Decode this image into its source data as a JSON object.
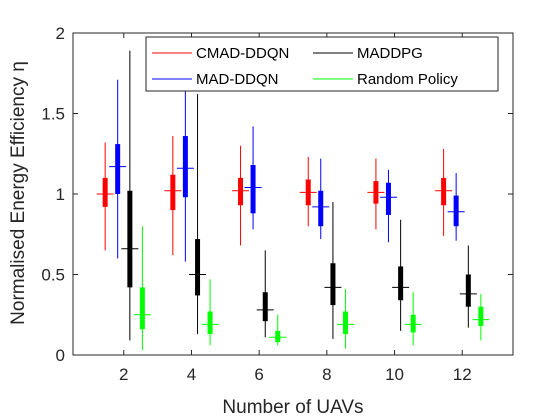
{
  "chart_data": {
    "type": "box",
    "xlabel": "Number of UAVs",
    "ylabel": "Normalised Energy Efficiency η",
    "categories": [
      "2",
      "4",
      "6",
      "8",
      "10",
      "12"
    ],
    "x": [
      2,
      4,
      6,
      8,
      10,
      12
    ],
    "xlim": [
      0.5,
      13.5
    ],
    "ylim": [
      0,
      2
    ],
    "yticks": [
      "0",
      "0.5",
      "1",
      "1.5",
      "2"
    ],
    "grid": false,
    "legend_position": "top-right",
    "series": [
      {
        "name": "CMAD-DDQN",
        "color": "#ff0000",
        "boxes": [
          {
            "min": 0.65,
            "q1": 0.92,
            "median": 1.0,
            "q3": 1.1,
            "max": 1.32
          },
          {
            "min": 0.62,
            "q1": 0.9,
            "median": 1.02,
            "q3": 1.12,
            "max": 1.36
          },
          {
            "min": 0.68,
            "q1": 0.93,
            "median": 1.02,
            "q3": 1.1,
            "max": 1.3
          },
          {
            "min": 0.8,
            "q1": 0.93,
            "median": 1.01,
            "q3": 1.09,
            "max": 1.23
          },
          {
            "min": 0.78,
            "q1": 0.94,
            "median": 1.01,
            "q3": 1.08,
            "max": 1.22
          },
          {
            "min": 0.74,
            "q1": 0.93,
            "median": 1.02,
            "q3": 1.1,
            "max": 1.28
          }
        ]
      },
      {
        "name": "MAD-DDQN",
        "color": "#0000ff",
        "boxes": [
          {
            "min": 0.6,
            "q1": 1.0,
            "median": 1.17,
            "q3": 1.31,
            "max": 1.71
          },
          {
            "min": 0.58,
            "q1": 0.98,
            "median": 1.16,
            "q3": 1.36,
            "max": 1.65
          },
          {
            "min": 0.78,
            "q1": 0.88,
            "median": 1.04,
            "q3": 1.18,
            "max": 1.42
          },
          {
            "min": 0.72,
            "q1": 0.8,
            "median": 0.92,
            "q3": 1.02,
            "max": 1.22
          },
          {
            "min": 0.7,
            "q1": 0.87,
            "median": 0.98,
            "q3": 1.07,
            "max": 1.15
          },
          {
            "min": 0.71,
            "q1": 0.8,
            "median": 0.89,
            "q3": 0.99,
            "max": 1.13
          }
        ]
      },
      {
        "name": "MADDPG",
        "color": "#000000",
        "boxes": [
          {
            "min": 0.09,
            "q1": 0.42,
            "median": 0.66,
            "q3": 1.02,
            "max": 1.89
          },
          {
            "min": 0.13,
            "q1": 0.37,
            "median": 0.5,
            "q3": 0.72,
            "max": 1.62
          },
          {
            "min": 0.11,
            "q1": 0.21,
            "median": 0.28,
            "q3": 0.39,
            "max": 0.65
          },
          {
            "min": 0.1,
            "q1": 0.31,
            "median": 0.42,
            "q3": 0.57,
            "max": 0.95
          },
          {
            "min": 0.15,
            "q1": 0.34,
            "median": 0.42,
            "q3": 0.55,
            "max": 0.84
          },
          {
            "min": 0.17,
            "q1": 0.3,
            "median": 0.38,
            "q3": 0.5,
            "max": 0.68
          }
        ]
      },
      {
        "name": "Random Policy",
        "color": "#00ff00",
        "boxes": [
          {
            "min": 0.03,
            "q1": 0.16,
            "median": 0.25,
            "q3": 0.42,
            "max": 0.8
          },
          {
            "min": 0.06,
            "q1": 0.13,
            "median": 0.19,
            "q3": 0.27,
            "max": 0.47
          },
          {
            "min": 0.06,
            "q1": 0.08,
            "median": 0.11,
            "q3": 0.15,
            "max": 0.25
          },
          {
            "min": 0.04,
            "q1": 0.13,
            "median": 0.19,
            "q3": 0.27,
            "max": 0.41
          },
          {
            "min": 0.06,
            "q1": 0.14,
            "median": 0.19,
            "q3": 0.25,
            "max": 0.39
          },
          {
            "min": 0.09,
            "q1": 0.18,
            "median": 0.22,
            "q3": 0.3,
            "max": 0.38
          }
        ]
      }
    ]
  }
}
